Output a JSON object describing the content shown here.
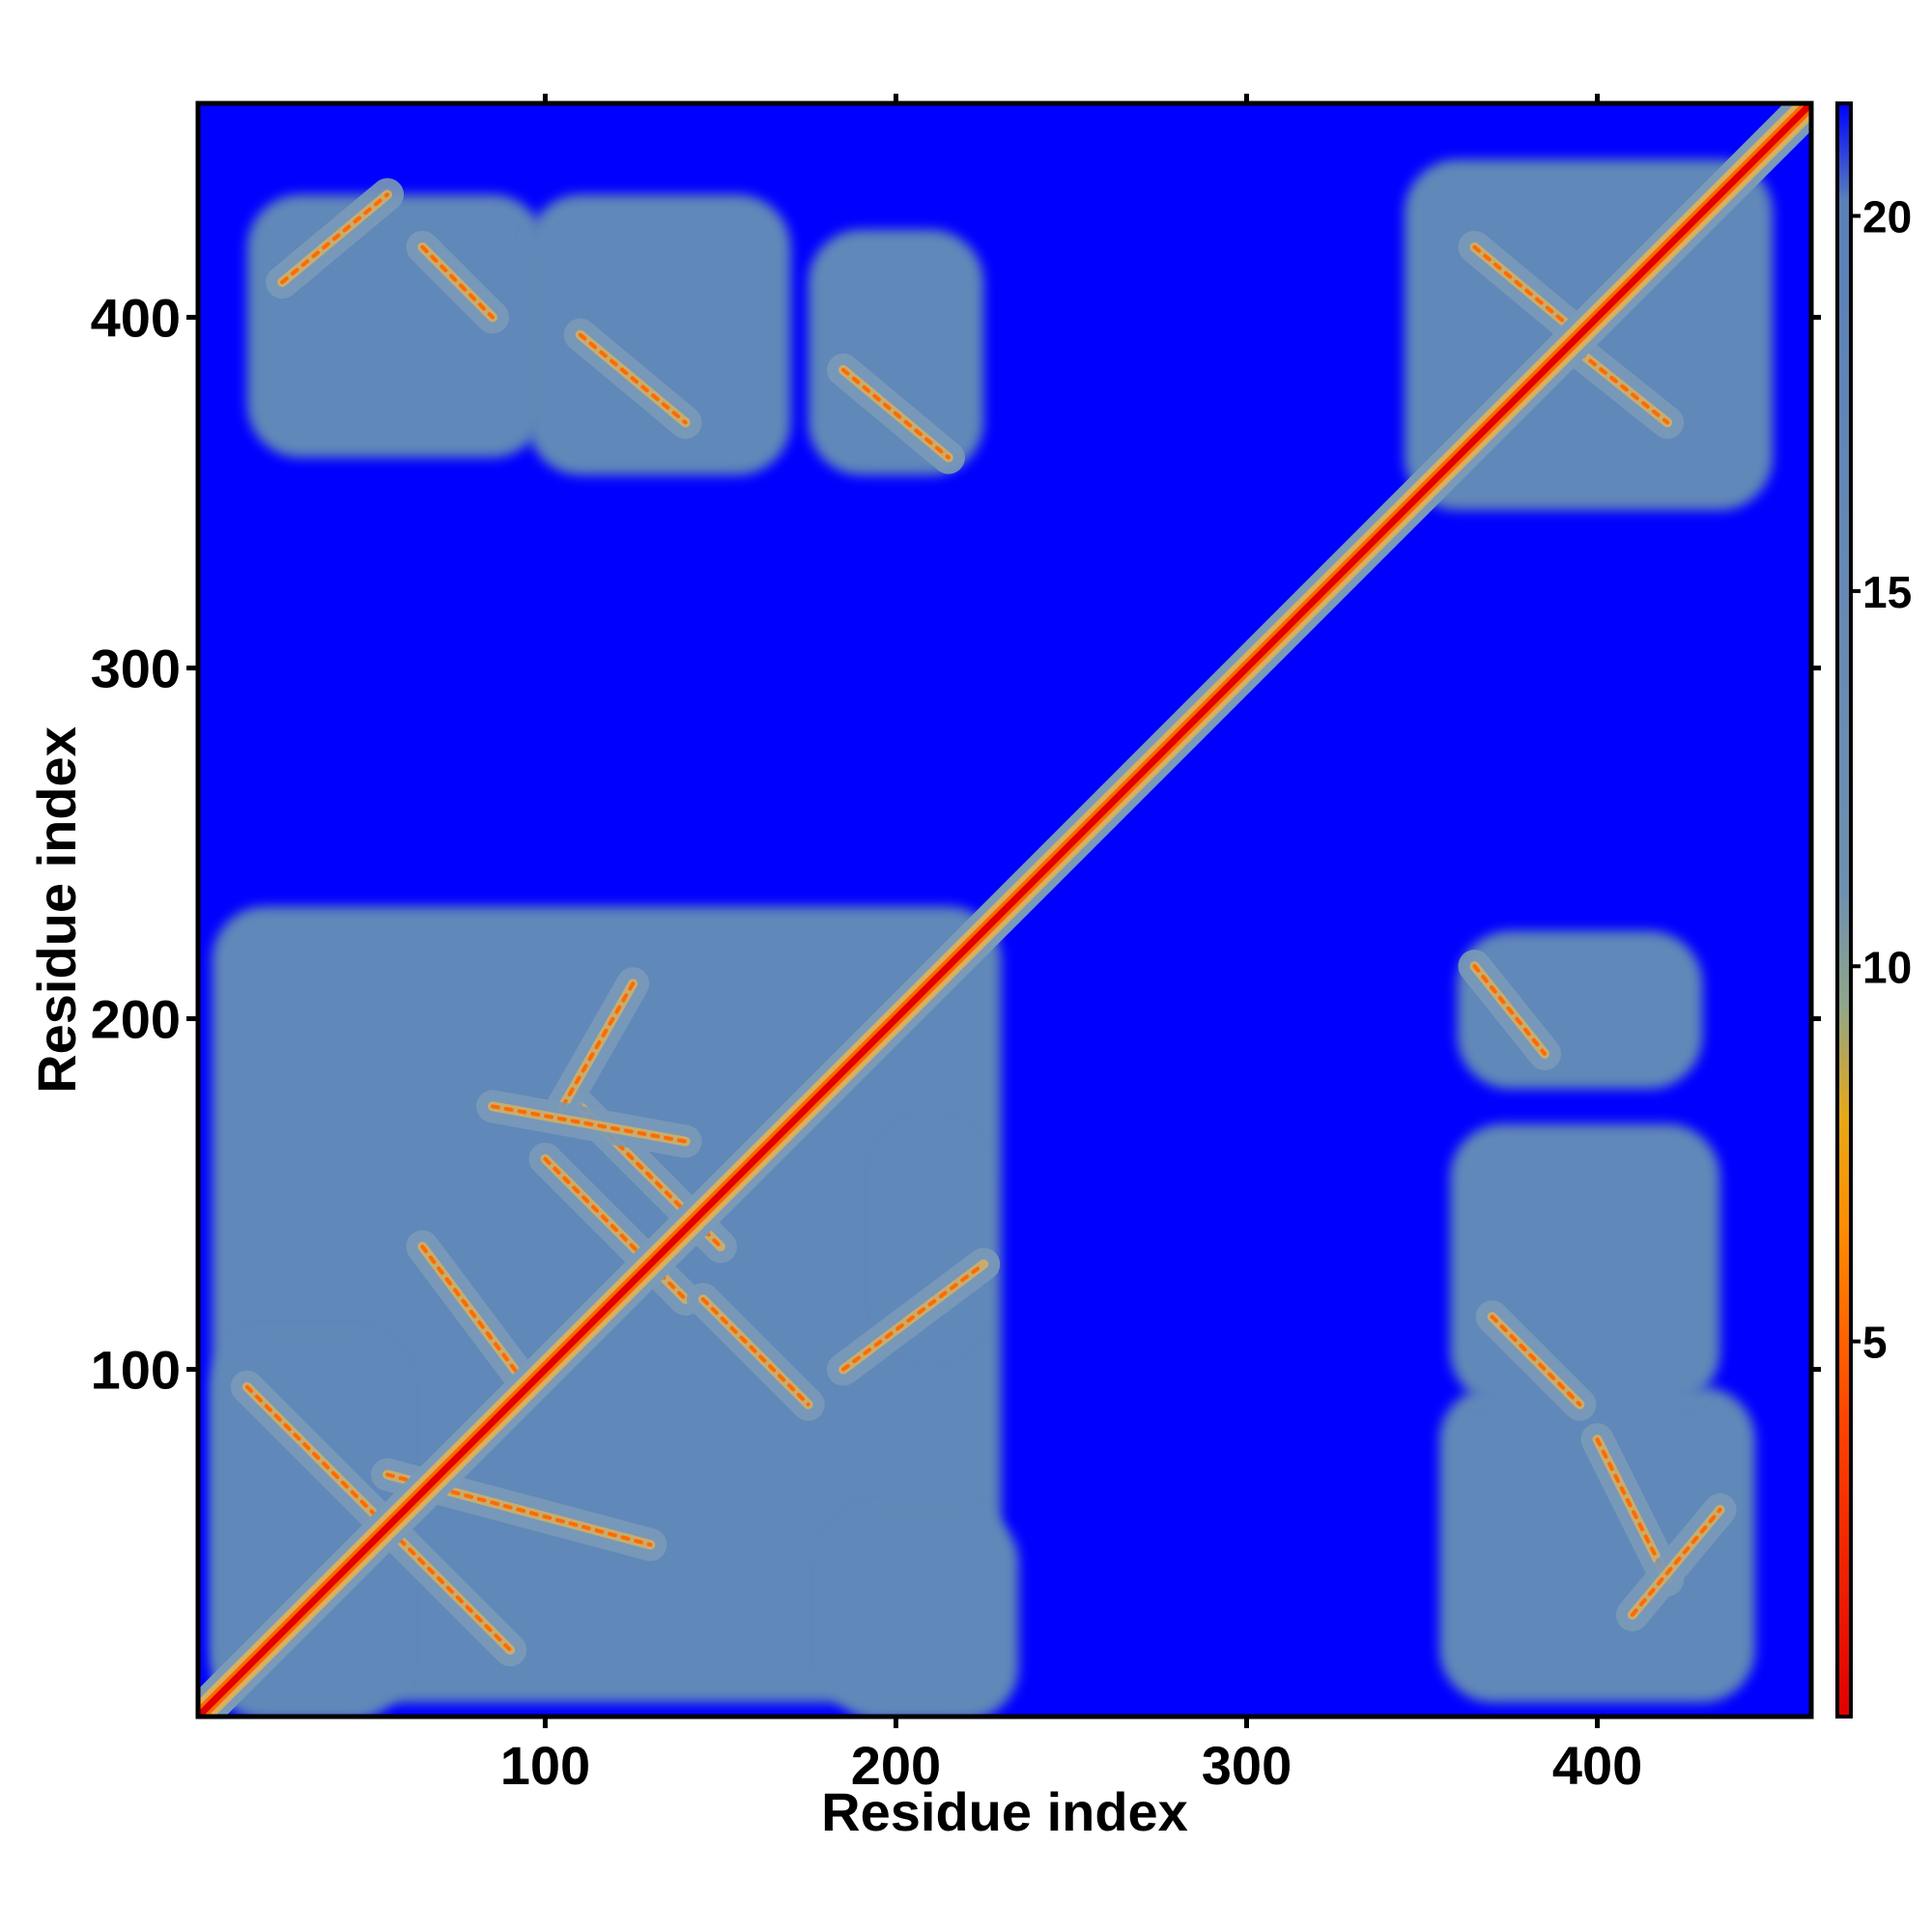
{
  "chart_data": {
    "type": "heatmap",
    "title": "",
    "xlabel": "Residue index",
    "ylabel": "Residue index",
    "xlim": [
      1,
      461
    ],
    "ylim": [
      1,
      461
    ],
    "x_ticks": [
      100,
      200,
      300,
      400
    ],
    "x_tick_labels": [
      "100",
      "200",
      "300",
      "400"
    ],
    "y_ticks": [
      100,
      200,
      300,
      400
    ],
    "y_tick_labels": [
      "100",
      "200",
      "300",
      "400"
    ],
    "grid": false,
    "legend": "colorbar-right",
    "colorbar": {
      "range": [
        0,
        21.5
      ],
      "ticks": [
        5,
        10,
        15,
        20
      ],
      "tick_labels": [
        "5",
        "10",
        "15",
        "20"
      ],
      "stops": [
        {
          "value": 0,
          "color": "#e00000"
        },
        {
          "value": 4,
          "color": "#ff4500"
        },
        {
          "value": 6.5,
          "color": "#ff8c00"
        },
        {
          "value": 8,
          "color": "#e6a817"
        },
        {
          "value": 9.5,
          "color": "#8fa58a"
        },
        {
          "value": 11,
          "color": "#6f8fb0"
        },
        {
          "value": 20.2,
          "color": "#5a80b8"
        },
        {
          "value": 21.5,
          "color": "#0000ff"
        }
      ]
    },
    "colors": {
      "background": "#0000ff",
      "contact_region": "#6088b8",
      "contact_region_light": "#7a9ab8",
      "mid": "#d8b060",
      "close": "#ff6a00",
      "diagonal": "#e00000"
    },
    "regions": [
      {
        "x": [
          5,
          230
        ],
        "y": [
          5,
          232
        ]
      },
      {
        "x": [
          5,
          60
        ],
        "y": [
          0,
          110
        ]
      },
      {
        "x": [
          180,
          235
        ],
        "y": [
          0,
          60
        ]
      },
      {
        "x": [
          195,
          225
        ],
        "y": [
          105,
          170
        ]
      },
      {
        "x": [
          355,
          445
        ],
        "y": [
          5,
          95
        ]
      },
      {
        "x": [
          358,
          435
        ],
        "y": [
          90,
          170
        ]
      },
      {
        "x": [
          360,
          430
        ],
        "y": [
          180,
          225
        ]
      },
      {
        "x": [
          15,
          100
        ],
        "y": [
          360,
          435
        ]
      },
      {
        "x": [
          95,
          170
        ],
        "y": [
          355,
          435
        ]
      },
      {
        "x": [
          175,
          225
        ],
        "y": [
          355,
          425
        ]
      },
      {
        "x": [
          345,
          450
        ],
        "y": [
          345,
          445
        ]
      }
    ],
    "contact_lines": [
      {
        "from": [
          15,
          95
        ],
        "to": [
          90,
          20
        ]
      },
      {
        "from": [
          55,
          70
        ],
        "to": [
          130,
          50
        ]
      },
      {
        "from": [
          65,
          135
        ],
        "to": [
          95,
          95
        ]
      },
      {
        "from": [
          100,
          160
        ],
        "to": [
          140,
          120
        ]
      },
      {
        "from": [
          110,
          175
        ],
        "to": [
          150,
          135
        ]
      },
      {
        "from": [
          125,
          210
        ],
        "to": [
          105,
          175
        ]
      },
      {
        "from": [
          145,
          120
        ],
        "to": [
          175,
          90
        ]
      },
      {
        "from": [
          185,
          100
        ],
        "to": [
          225,
          130
        ]
      },
      {
        "from": [
          85,
          175
        ],
        "to": [
          140,
          165
        ]
      },
      {
        "from": [
          110,
          395
        ],
        "to": [
          140,
          370
        ]
      },
      {
        "from": [
          25,
          410
        ],
        "to": [
          55,
          435
        ]
      },
      {
        "from": [
          65,
          420
        ],
        "to": [
          85,
          400
        ]
      },
      {
        "from": [
          185,
          385
        ],
        "to": [
          215,
          360
        ]
      },
      {
        "from": [
          365,
          420
        ],
        "to": [
          395,
          395
        ]
      },
      {
        "from": [
          395,
          390
        ],
        "to": [
          420,
          370
        ]
      },
      {
        "from": [
          365,
          215
        ],
        "to": [
          385,
          190
        ]
      },
      {
        "from": [
          370,
          115
        ],
        "to": [
          395,
          90
        ]
      },
      {
        "from": [
          400,
          80
        ],
        "to": [
          420,
          40
        ]
      },
      {
        "from": [
          410,
          30
        ],
        "to": [
          435,
          60
        ]
      }
    ]
  }
}
